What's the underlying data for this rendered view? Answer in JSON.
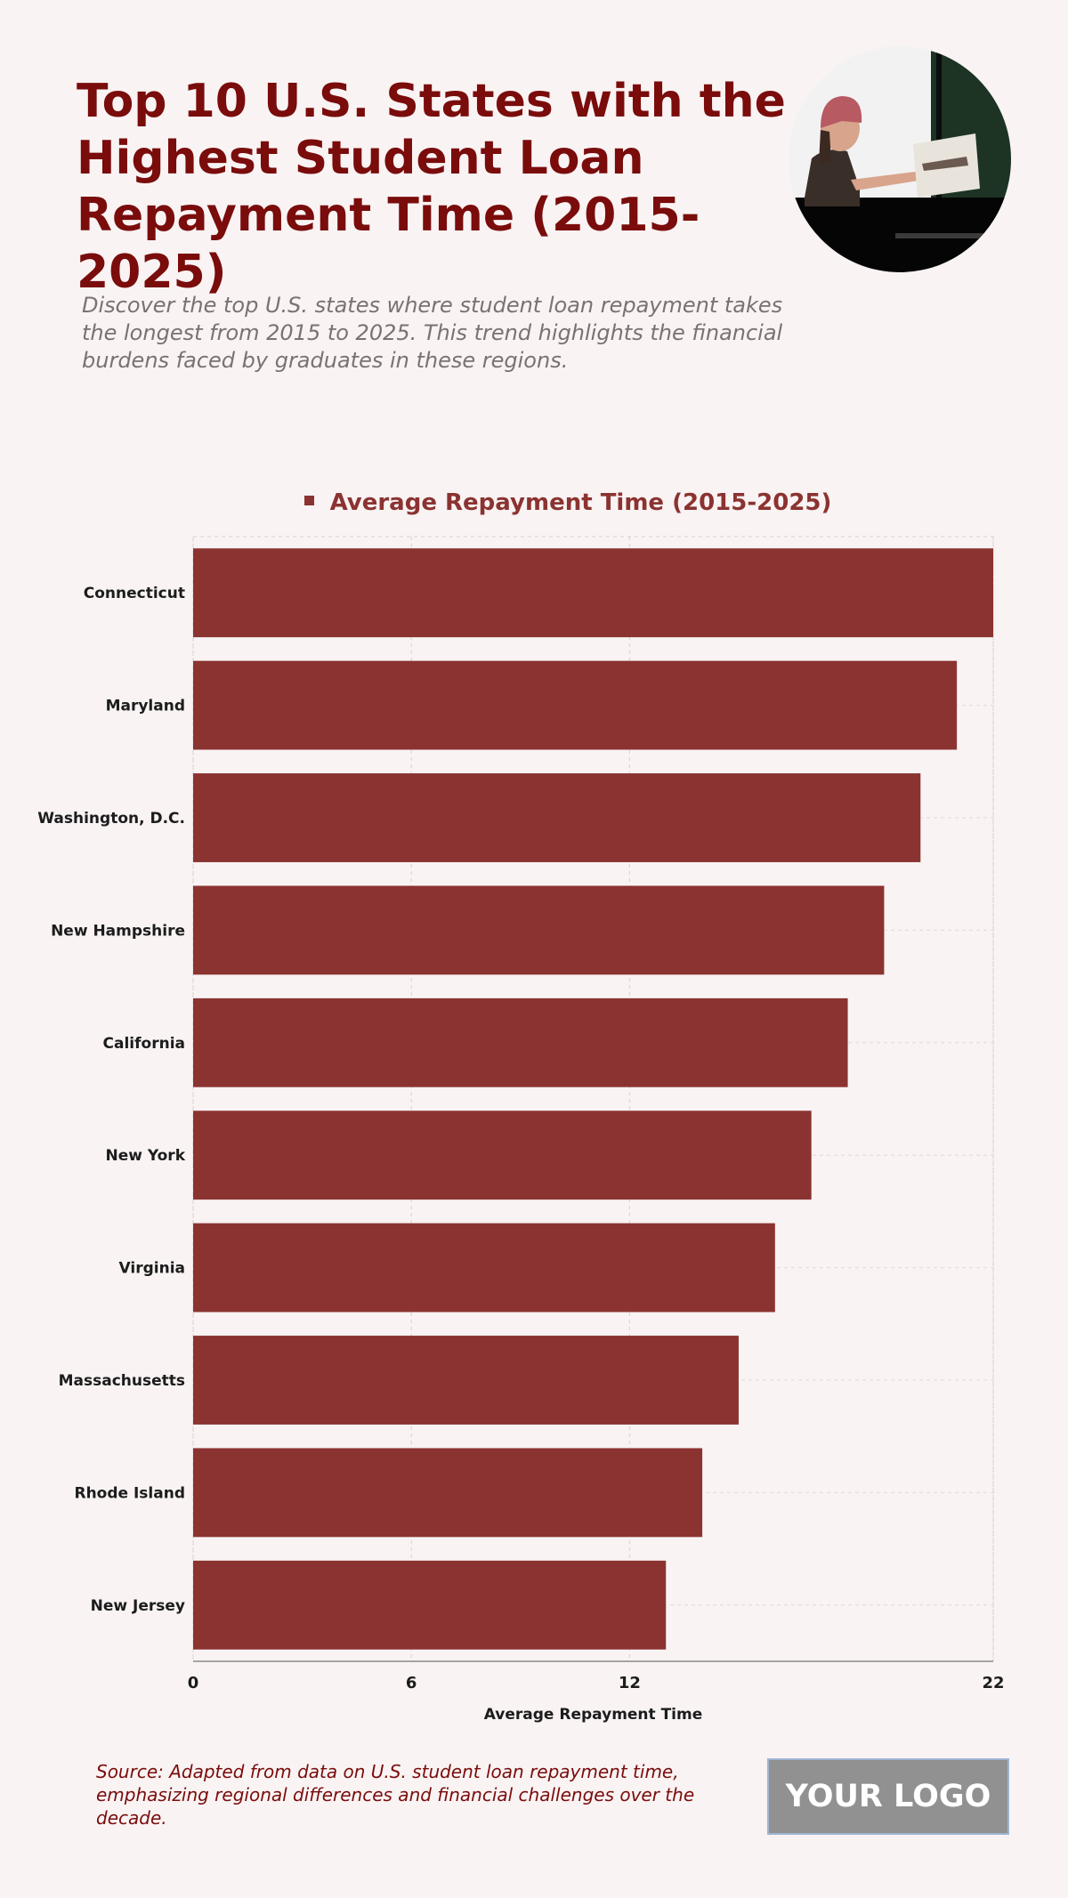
{
  "header": {
    "title": "Top 10 U.S. States with the Highest Student Loan Repayment Time (2015-2025)",
    "subtitle": "Discover the top U.S. states where student loan repayment takes the longest from 2015 to 2025. This trend highlights the financial burdens faced by graduates in these regions."
  },
  "footer": {
    "source": "Source: Adapted from data on U.S. student loan repayment time, emphasizing regional differences and financial challenges over the decade.",
    "logo_text": "YOUR LOGO"
  },
  "chart_data": {
    "type": "bar",
    "orientation": "horizontal",
    "categories": [
      "Connecticut",
      "Maryland",
      "Washington, D.C.",
      "New Hampshire",
      "California",
      "New York",
      "Virginia",
      "Massachusetts",
      "Rhode Island",
      "New Jersey"
    ],
    "series": [
      {
        "name": "Average Repayment Time (2015-2025)",
        "values": [
          22,
          21,
          20,
          19,
          18,
          17,
          16,
          15,
          14,
          13
        ],
        "color": "#8b3331"
      }
    ],
    "xlabel": "Average Repayment Time",
    "ylabel": "",
    "xlim": [
      0,
      22
    ],
    "xticks": [
      0,
      6,
      12,
      22
    ],
    "grid": true,
    "legend": "top-center"
  }
}
